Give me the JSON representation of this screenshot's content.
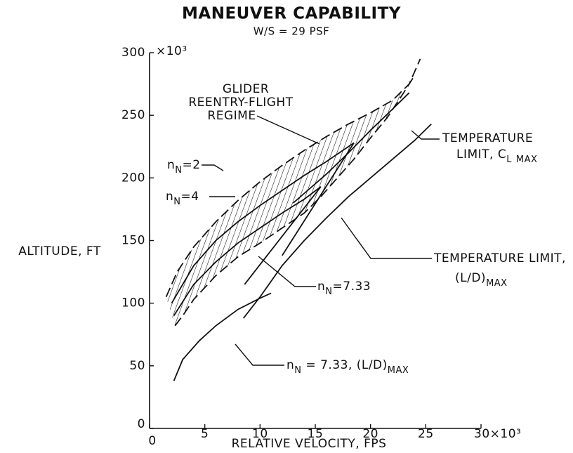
{
  "chart_data": {
    "type": "line",
    "title": "MANEUVER CAPABILITY",
    "subtitle": "W/S = 29 PSF",
    "x_label": "RELATIVE VELOCITY, FPS",
    "y_label": "ALTITUDE, FT",
    "xlim": [
      0,
      30
    ],
    "ylim": [
      0,
      300
    ],
    "xticks": [
      0,
      5,
      10,
      15,
      20,
      25,
      {
        "value": 30,
        "label": "30×10³"
      }
    ],
    "yticks": [
      0,
      50,
      100,
      150,
      200,
      250,
      300
    ],
    "y_multiplier": "×10³",
    "hatch": true,
    "series": [
      {
        "color": "#111",
        "dash": true,
        "x": [
          1.5,
          2.5,
          4,
          6,
          8,
          10,
          12,
          14,
          16,
          18,
          20,
          22,
          23.5,
          24.5
        ],
        "values": [
          105,
          125,
          145,
          165,
          182,
          197,
          210,
          222,
          233,
          243,
          252,
          262,
          275,
          295
        ]
      },
      {
        "color": "#111",
        "dash": true,
        "x": [
          2.3,
          3,
          4,
          6,
          8,
          10,
          12,
          14,
          15.5
        ],
        "values": [
          82,
          90,
          103,
          122,
          137,
          148,
          160,
          172,
          185
        ]
      },
      {
        "color": "#111",
        "dash": true,
        "x": [
          15.5,
          17,
          18.5,
          20,
          21.5,
          23,
          24
        ],
        "values": [
          185,
          200,
          215,
          232,
          248,
          268,
          282
        ]
      },
      {
        "color": "#111",
        "dash": false,
        "x": [
          2,
          4,
          6,
          8,
          10,
          12,
          14,
          16,
          18.5
        ],
        "values": [
          100,
          130,
          150,
          165,
          178,
          190,
          202,
          213,
          228
        ]
      },
      {
        "color": "#111",
        "dash": false,
        "x": [
          2.2,
          4,
          6,
          8,
          10,
          12,
          14,
          15.5
        ],
        "values": [
          90,
          115,
          133,
          148,
          160,
          172,
          183,
          193
        ]
      },
      {
        "color": "#111",
        "dash": false,
        "x": [
          8.5,
          10,
          12,
          14,
          16,
          18,
          20,
          22,
          24,
          25.5
        ],
        "values": [
          88,
          105,
          130,
          150,
          168,
          185,
          200,
          215,
          230,
          243
        ]
      },
      {
        "color": "#111",
        "dash": false,
        "x": [
          8.6,
          15.5
        ],
        "values": [
          115,
          193
        ]
      },
      {
        "color": "#111",
        "dash": false,
        "x": [
          12,
          18.5
        ],
        "values": [
          138,
          228
        ]
      },
      {
        "color": "#111",
        "dash": false,
        "x": [
          13,
          16,
          18,
          20,
          22,
          23.5
        ],
        "values": [
          180,
          203,
          220,
          238,
          255,
          268
        ]
      },
      {
        "color": "#111",
        "dash": false,
        "x": [
          2.2,
          3,
          4.5,
          6,
          8,
          10,
          11
        ],
        "values": [
          38,
          55,
          70,
          82,
          95,
          104,
          108
        ]
      }
    ],
    "annotations": [
      {
        "parts": [
          "GLIDER"
        ]
      },
      {
        "parts": [
          "REENTRY-FLIGHT"
        ]
      },
      {
        "parts": [
          "REGIME"
        ]
      },
      {
        "parts": [
          "TEMPERATURE"
        ]
      },
      {
        "parts": [
          "LIMIT, C",
          "L",
          " ",
          "MAX"
        ]
      },
      {
        "parts": [
          "n",
          "N",
          "=2"
        ]
      },
      {
        "parts": [
          "n",
          "N",
          "=4"
        ]
      },
      {
        "parts": [
          "TEMPERATURE LIMIT,"
        ]
      },
      {
        "parts": [
          "(L/D)",
          "MAX"
        ]
      },
      {
        "parts": [
          "n",
          "N",
          "=7.33"
        ]
      },
      {
        "parts": [
          "n",
          "N",
          " = 7.33, (L/D)",
          "MAX"
        ]
      }
    ]
  }
}
